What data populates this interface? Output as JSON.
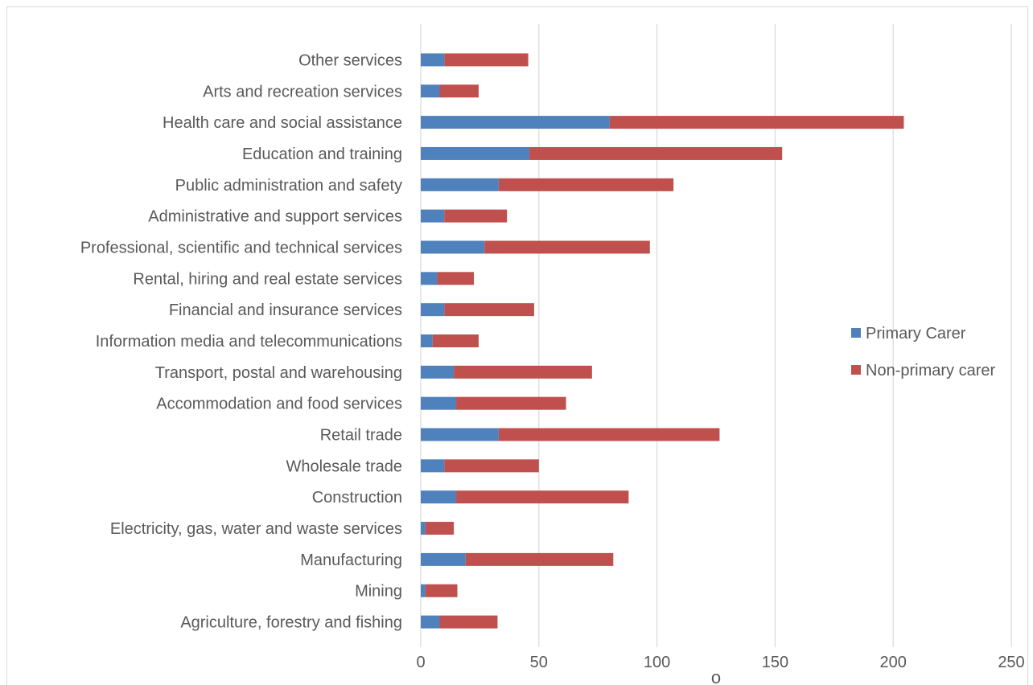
{
  "chart_data": {
    "type": "bar",
    "orientation": "horizontal",
    "stacked": true,
    "title": "",
    "xlabel": "o",
    "ylabel": "",
    "xlim": [
      0,
      250
    ],
    "x_ticks": [
      "0",
      "50",
      "100",
      "150",
      "200",
      "250"
    ],
    "grid": "vertical",
    "legend_position": "right",
    "categories": [
      "Other services",
      "Arts and recreation services",
      "Health care and social assistance",
      "Education and training",
      "Public administration and safety",
      "Administrative and support services",
      "Professional, scientific and technical services",
      "Rental, hiring and real estate services",
      "Financial and insurance services",
      "Information media and telecommunications",
      "Transport, postal and warehousing",
      "Accommodation and food services",
      "Retail trade",
      "Wholesale trade",
      "Construction",
      "Electricity, gas, water and waste services",
      "Manufacturing",
      "Mining",
      "Agriculture, forestry and fishing"
    ],
    "series": [
      {
        "name": "Primary Carer",
        "color": "#4f81bd",
        "values": [
          10,
          8,
          80,
          46,
          33,
          10,
          27,
          7,
          10,
          5,
          14,
          15,
          33,
          10,
          15,
          2,
          19,
          2,
          8
        ]
      },
      {
        "name": "Non-primary carer",
        "color": "#c0504d",
        "values": [
          35.5,
          16.5,
          124.5,
          107,
          74,
          26.5,
          70,
          15.5,
          38,
          19.5,
          58.5,
          46.5,
          93.5,
          40,
          73,
          12,
          62.5,
          13.5,
          24.5
        ]
      }
    ]
  }
}
